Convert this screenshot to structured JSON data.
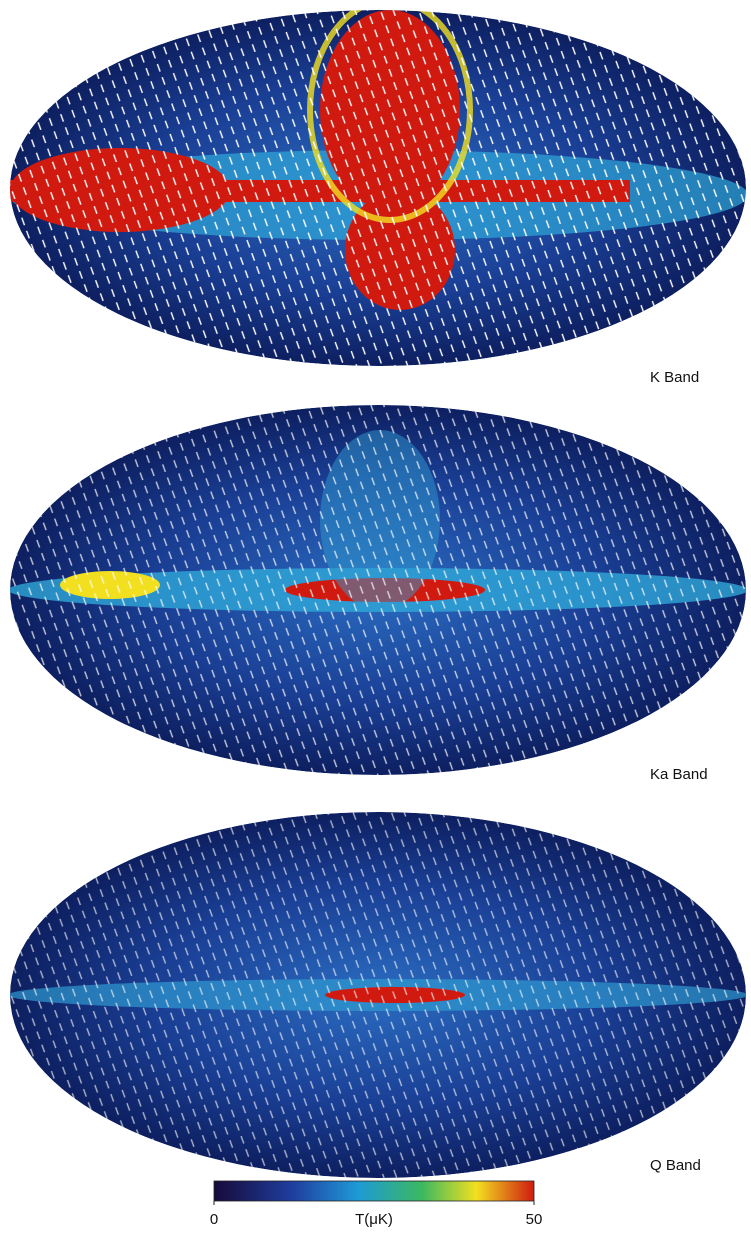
{
  "panels": [
    {
      "label": "K Band"
    },
    {
      "label": "Ka Band"
    },
    {
      "label": "Q Band"
    }
  ],
  "colorbar": {
    "label": "T(μK)",
    "lim": [
      0,
      50
    ],
    "ticks": [
      0,
      50
    ]
  }
}
